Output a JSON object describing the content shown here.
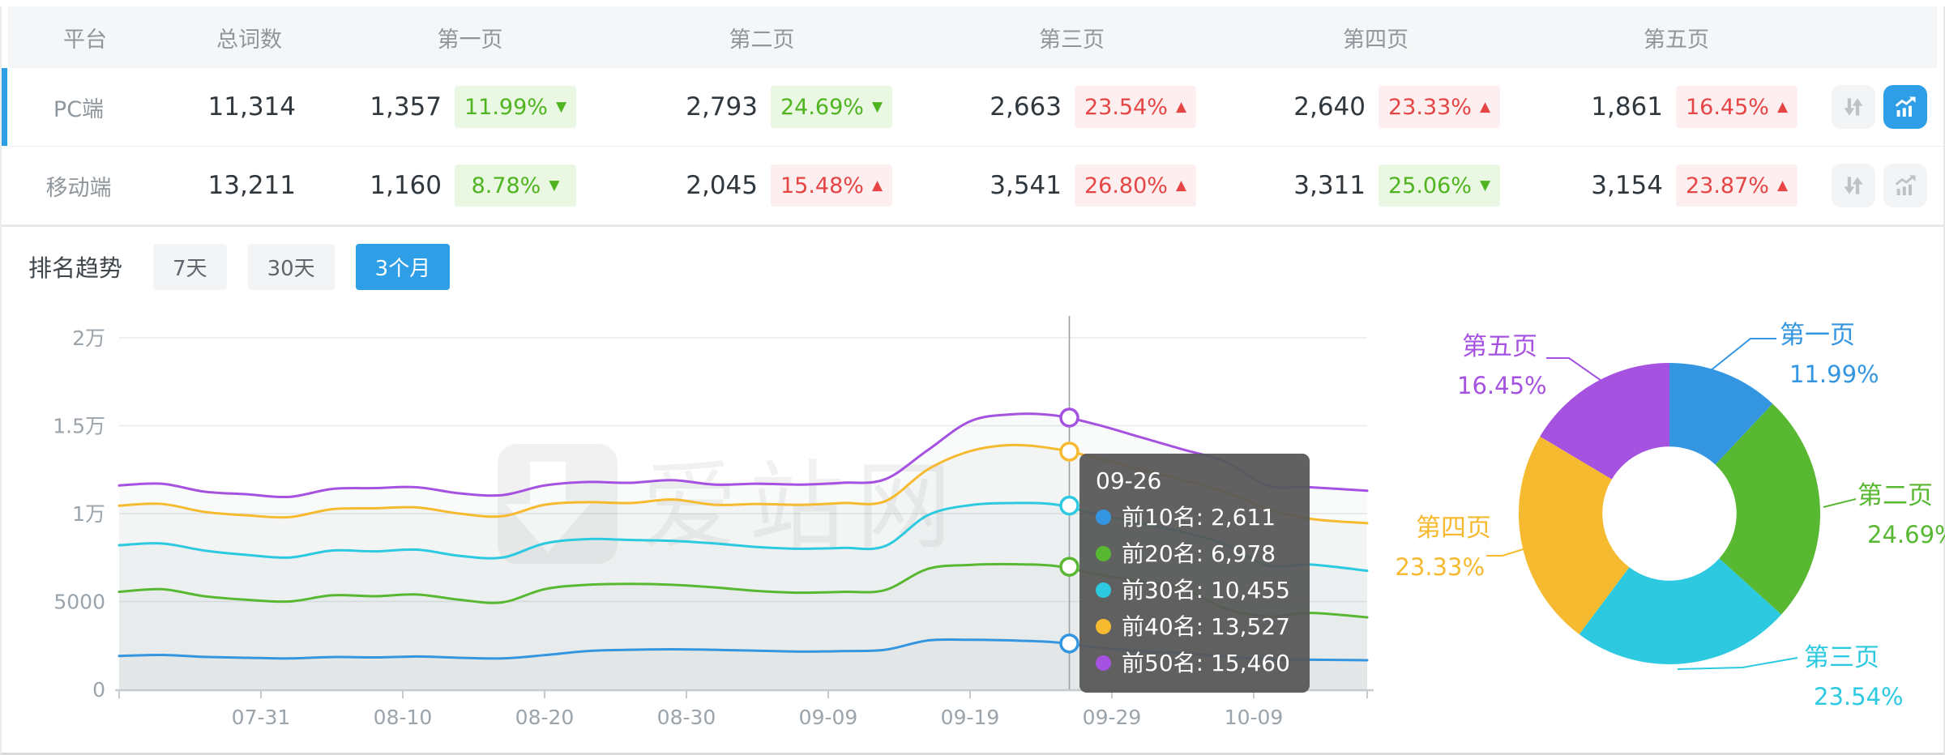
{
  "colors": {
    "accent": "#2e9fe6",
    "badge_green_text": "#4fb41f",
    "badge_green_bg": "#e9f7e3",
    "badge_red_text": "#e54545",
    "badge_red_bg": "#fdefef",
    "series_blue": "#3496e0",
    "series_green": "#58b832",
    "series_cyan": "#2cc9e0",
    "series_yellow": "#f6ba30",
    "series_purple": "#a552e0"
  },
  "table": {
    "headers": [
      "平台",
      "总词数",
      "第一页",
      "第二页",
      "第三页",
      "第四页",
      "第五页"
    ],
    "rows": [
      {
        "platform": "PC端",
        "total": "11,314",
        "selected": true,
        "pages": [
          {
            "count": "1,357",
            "pct": "11.99%",
            "dir": "down",
            "tone": "green"
          },
          {
            "count": "2,793",
            "pct": "24.69%",
            "dir": "down",
            "tone": "green"
          },
          {
            "count": "2,663",
            "pct": "23.54%",
            "dir": "up",
            "tone": "red"
          },
          {
            "count": "2,640",
            "pct": "23.33%",
            "dir": "up",
            "tone": "red"
          },
          {
            "count": "1,861",
            "pct": "16.45%",
            "dir": "up",
            "tone": "red"
          }
        ]
      },
      {
        "platform": "移动端",
        "total": "13,211",
        "selected": false,
        "pages": [
          {
            "count": "1,160",
            "pct": "8.78%",
            "dir": "down",
            "tone": "green"
          },
          {
            "count": "2,045",
            "pct": "15.48%",
            "dir": "up",
            "tone": "red"
          },
          {
            "count": "3,541",
            "pct": "26.80%",
            "dir": "up",
            "tone": "red"
          },
          {
            "count": "3,311",
            "pct": "25.06%",
            "dir": "down",
            "tone": "green"
          },
          {
            "count": "3,154",
            "pct": "23.87%",
            "dir": "up",
            "tone": "red"
          }
        ]
      }
    ]
  },
  "trend": {
    "title": "排名趋势",
    "tabs": [
      {
        "label": "7天",
        "active": false
      },
      {
        "label": "30天",
        "active": false
      },
      {
        "label": "3个月",
        "active": true
      }
    ]
  },
  "watermark": "爱站网",
  "tooltip": {
    "date": "09-26",
    "rows": [
      {
        "label": "前10名",
        "value": "2,611",
        "color": "#3496e0"
      },
      {
        "label": "前20名",
        "value": "6,978",
        "color": "#58b832"
      },
      {
        "label": "前30名",
        "value": "10,455",
        "color": "#2cc9e0"
      },
      {
        "label": "前40名",
        "value": "13,527",
        "color": "#f6ba30"
      },
      {
        "label": "前50名",
        "value": "15,460",
        "color": "#a552e0"
      }
    ]
  },
  "chart_data": [
    {
      "type": "line",
      "title": "排名趋势 (3个月, PC端)",
      "xlabel": "",
      "ylabel": "",
      "grid": "horizontal",
      "x_tick_labels": [
        "07-31",
        "08-10",
        "08-20",
        "08-30",
        "09-09",
        "09-19",
        "09-29",
        "10-09"
      ],
      "x_tick_days": [
        10,
        20,
        30,
        40,
        50,
        60,
        70,
        80
      ],
      "day_span": 88,
      "y_ticks": [
        {
          "value": 0,
          "label": "0"
        },
        {
          "value": 5000,
          "label": "5000"
        },
        {
          "value": 10000,
          "label": "1万"
        },
        {
          "value": 15000,
          "label": "1.5万"
        },
        {
          "value": 20000,
          "label": "2万"
        }
      ],
      "ylim": [
        0,
        21400
      ],
      "days": [
        0,
        3,
        6,
        9,
        12,
        15,
        18,
        21,
        24,
        27,
        30,
        33,
        36,
        39,
        42,
        45,
        48,
        51,
        54,
        57,
        60,
        63,
        66,
        69,
        72,
        75,
        78,
        81,
        84,
        88
      ],
      "series": [
        {
          "name": "前10名",
          "color": "#3496e0",
          "values": [
            1900,
            1960,
            1850,
            1800,
            1760,
            1840,
            1820,
            1870,
            1800,
            1760,
            1950,
            2180,
            2250,
            2280,
            2250,
            2200,
            2150,
            2180,
            2250,
            2780,
            2820,
            2780,
            2680,
            2380,
            2180,
            2050,
            1880,
            1700,
            1690,
            1660
          ]
        },
        {
          "name": "前20名",
          "color": "#58b832",
          "values": [
            5550,
            5700,
            5300,
            5100,
            5000,
            5350,
            5300,
            5400,
            5100,
            4950,
            5700,
            5950,
            6000,
            5950,
            5800,
            5600,
            5500,
            5550,
            5650,
            6850,
            7080,
            7120,
            7020,
            6550,
            6150,
            5750,
            4600,
            4150,
            4350,
            4100
          ]
        },
        {
          "name": "前30名",
          "color": "#2cc9e0",
          "values": [
            8200,
            8300,
            7900,
            7650,
            7500,
            7900,
            7850,
            7950,
            7600,
            7500,
            8300,
            8550,
            8500,
            8450,
            8300,
            8100,
            8000,
            8050,
            8150,
            9900,
            10480,
            10600,
            10520,
            9950,
            9450,
            8950,
            8250,
            7050,
            7100,
            6750
          ]
        },
        {
          "name": "前40名",
          "color": "#f6ba30",
          "values": [
            10450,
            10550,
            10100,
            9900,
            9800,
            10250,
            10300,
            10350,
            10000,
            9850,
            10500,
            10650,
            10600,
            10800,
            10500,
            10550,
            10500,
            10600,
            10700,
            12500,
            13550,
            13900,
            13680,
            13150,
            12500,
            11900,
            11250,
            10250,
            9700,
            9450
          ]
        },
        {
          "name": "前50名",
          "color": "#a552e0",
          "values": [
            11600,
            11700,
            11250,
            11100,
            10950,
            11400,
            11450,
            11500,
            11150,
            11050,
            11600,
            11800,
            11750,
            11900,
            11650,
            11700,
            11650,
            11750,
            11950,
            13600,
            15250,
            15650,
            15580,
            15050,
            14350,
            13650,
            12950,
            11600,
            11500,
            11300
          ]
        }
      ],
      "crosshair": {
        "date": "09-26",
        "day": 67,
        "values": [
          2611,
          6978,
          10455,
          13527,
          15460
        ]
      }
    },
    {
      "type": "pie",
      "donut": true,
      "inner_ratio": 0.445,
      "legend_position": "callout-labels",
      "slices": [
        {
          "label": "第一页",
          "pct": 11.99,
          "color": "#3496e0"
        },
        {
          "label": "第二页",
          "pct": 24.69,
          "color": "#58b832"
        },
        {
          "label": "第三页",
          "pct": 23.54,
          "color": "#2cc9e0"
        },
        {
          "label": "第四页",
          "pct": 23.33,
          "color": "#f6ba30"
        },
        {
          "label": "第五页",
          "pct": 16.45,
          "color": "#a552e0"
        }
      ]
    }
  ]
}
